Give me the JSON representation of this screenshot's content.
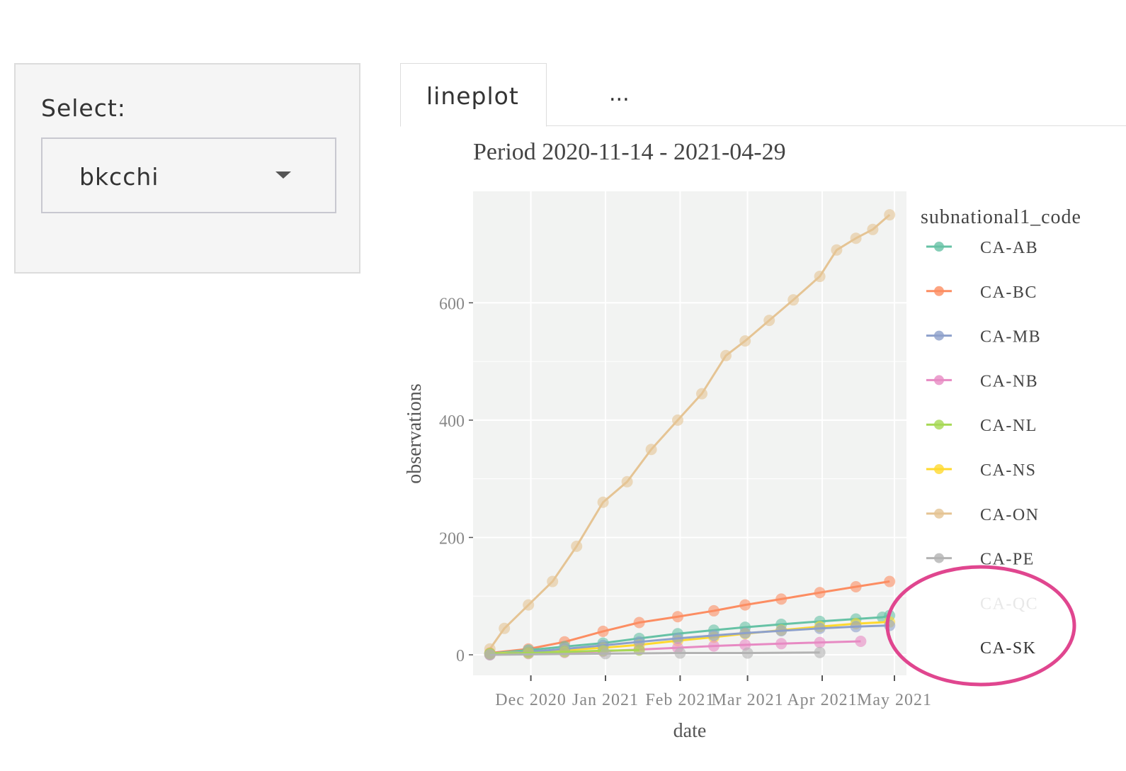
{
  "sidebar": {
    "select_label": "Select:",
    "select_value": "bkcchi"
  },
  "tabs": [
    {
      "label": "lineplot"
    },
    {
      "label": "..."
    }
  ],
  "chart_data": {
    "type": "line",
    "title": "Period 2020-11-14 - 2021-04-29",
    "xlabel": "date",
    "ylabel": "observations",
    "legend_title": "subnational1_code",
    "legend_placement": "right",
    "grid": true,
    "ylim": [
      -35,
      790
    ],
    "xlim": [
      "2020-11-07",
      "2021-05-06"
    ],
    "x_ticks": [
      {
        "date": "2020-12-01",
        "label": "Dec 2020"
      },
      {
        "date": "2021-01-01",
        "label": "Jan 2021"
      },
      {
        "date": "2021-02-01",
        "label": "Feb 2021"
      },
      {
        "date": "2021-03-01",
        "label": "Mar 2021"
      },
      {
        "date": "2021-04-01",
        "label": "Apr 2021"
      },
      {
        "date": "2021-05-01",
        "label": "May 2021"
      }
    ],
    "y_ticks": [
      0,
      200,
      400,
      600
    ],
    "series": [
      {
        "name": "CA-AB",
        "color": "#66c2a5",
        "points": [
          [
            "2020-11-14",
            2
          ],
          [
            "2020-11-30",
            8
          ],
          [
            "2020-12-15",
            14
          ],
          [
            "2020-12-31",
            20
          ],
          [
            "2021-01-15",
            28
          ],
          [
            "2021-01-31",
            36
          ],
          [
            "2021-02-15",
            42
          ],
          [
            "2021-02-28",
            47
          ],
          [
            "2021-03-15",
            52
          ],
          [
            "2021-03-31",
            57
          ],
          [
            "2021-04-15",
            61
          ],
          [
            "2021-04-26",
            64
          ],
          [
            "2021-04-29",
            67
          ]
        ]
      },
      {
        "name": "CA-BC",
        "color": "#fc8d62",
        "points": [
          [
            "2020-11-14",
            3
          ],
          [
            "2020-11-30",
            10
          ],
          [
            "2020-12-15",
            22
          ],
          [
            "2020-12-31",
            40
          ],
          [
            "2021-01-15",
            55
          ],
          [
            "2021-01-31",
            65
          ],
          [
            "2021-02-15",
            75
          ],
          [
            "2021-02-28",
            85
          ],
          [
            "2021-03-15",
            95
          ],
          [
            "2021-03-31",
            106
          ],
          [
            "2021-04-15",
            116
          ],
          [
            "2021-04-29",
            125
          ]
        ]
      },
      {
        "name": "CA-MB",
        "color": "#8da0cb",
        "points": [
          [
            "2020-11-14",
            1
          ],
          [
            "2020-11-30",
            5
          ],
          [
            "2020-12-15",
            10
          ],
          [
            "2020-12-31",
            16
          ],
          [
            "2021-01-15",
            22
          ],
          [
            "2021-01-31",
            28
          ],
          [
            "2021-02-15",
            33
          ],
          [
            "2021-02-28",
            37
          ],
          [
            "2021-03-15",
            41
          ],
          [
            "2021-03-31",
            45
          ],
          [
            "2021-04-15",
            48
          ],
          [
            "2021-04-29",
            50
          ]
        ]
      },
      {
        "name": "CA-NB",
        "color": "#e78ac3",
        "points": [
          [
            "2020-11-14",
            0
          ],
          [
            "2020-11-30",
            2
          ],
          [
            "2020-12-15",
            4
          ],
          [
            "2020-12-31",
            6
          ],
          [
            "2021-01-15",
            9
          ],
          [
            "2021-01-31",
            12
          ],
          [
            "2021-02-15",
            15
          ],
          [
            "2021-02-28",
            17
          ],
          [
            "2021-03-15",
            19
          ],
          [
            "2021-03-31",
            21
          ],
          [
            "2021-04-17",
            23
          ]
        ]
      },
      {
        "name": "CA-NL",
        "color": "#a6d854",
        "points": [
          [
            "2020-11-14",
            2
          ],
          [
            "2020-11-30",
            3
          ],
          [
            "2020-12-15",
            5
          ],
          [
            "2020-12-31",
            7
          ],
          [
            "2021-01-15",
            8
          ]
        ]
      },
      {
        "name": "CA-NS",
        "color": "#ffd92f",
        "points": [
          [
            "2020-11-14",
            2
          ],
          [
            "2020-11-30",
            5
          ],
          [
            "2020-12-15",
            8
          ],
          [
            "2020-12-31",
            12
          ],
          [
            "2021-01-15",
            17
          ],
          [
            "2021-01-31",
            24
          ],
          [
            "2021-02-15",
            30
          ],
          [
            "2021-02-28",
            36
          ],
          [
            "2021-03-15",
            42
          ],
          [
            "2021-03-31",
            48
          ],
          [
            "2021-04-15",
            53
          ],
          [
            "2021-04-29",
            56
          ]
        ]
      },
      {
        "name": "CA-ON",
        "color": "#e5c494",
        "points": [
          [
            "2020-11-14",
            10
          ],
          [
            "2020-11-20",
            45
          ],
          [
            "2020-11-30",
            85
          ],
          [
            "2020-12-10",
            125
          ],
          [
            "2020-12-20",
            185
          ],
          [
            "2020-12-31",
            260
          ],
          [
            "2021-01-10",
            295
          ],
          [
            "2021-01-20",
            350
          ],
          [
            "2021-01-31",
            400
          ],
          [
            "2021-02-10",
            445
          ],
          [
            "2021-02-20",
            510
          ],
          [
            "2021-02-28",
            535
          ],
          [
            "2021-03-10",
            570
          ],
          [
            "2021-03-20",
            605
          ],
          [
            "2021-03-31",
            645
          ],
          [
            "2021-04-07",
            690
          ],
          [
            "2021-04-15",
            710
          ],
          [
            "2021-04-22",
            725
          ],
          [
            "2021-04-29",
            750
          ]
        ]
      },
      {
        "name": "CA-PE",
        "color": "#b3b3b3",
        "points": [
          [
            "2020-11-14",
            0
          ],
          [
            "2021-01-01",
            2
          ],
          [
            "2021-02-01",
            3
          ],
          [
            "2021-03-01",
            3
          ],
          [
            "2021-03-31",
            4
          ]
        ]
      },
      {
        "name": "CA-QC",
        "color": "#e8e8e8",
        "points": []
      },
      {
        "name": "CA-SK",
        "color": "#333333",
        "points": []
      }
    ]
  },
  "annotation_color": "#e0468f"
}
